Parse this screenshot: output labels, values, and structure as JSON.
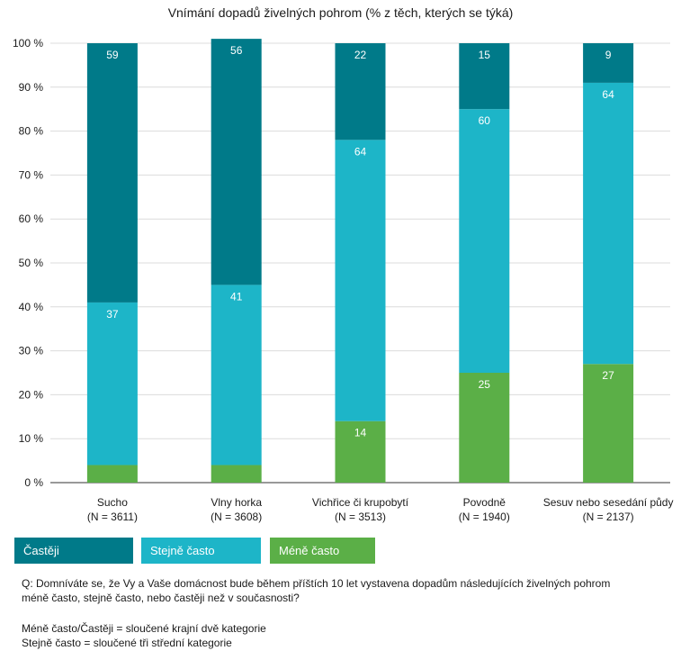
{
  "colors": {
    "more": "#007a89",
    "same": "#1db5c8",
    "less": "#5baf47",
    "grid": "#dcdcdc",
    "axis": "#333333"
  },
  "chart_data": {
    "type": "bar",
    "stacked": true,
    "title": "Vnímání dopadů živelných pohrom (% z těch, kterých se týká)",
    "categories": [
      [
        "Sucho",
        "(N = 3611)"
      ],
      [
        "Vlny horka",
        "(N = 3608)"
      ],
      [
        "Vichřice či krupobytí",
        "(N = 3513)"
      ],
      [
        "Povodně",
        "(N = 1940)"
      ],
      [
        "Sesuv nebo  sesedání půdy",
        "(N = 2137)"
      ]
    ],
    "series": [
      {
        "name": "Méně často",
        "key": "less",
        "values": [
          4,
          4,
          14,
          25,
          27
        ],
        "labels": [
          "",
          "",
          "14",
          "25",
          "27"
        ]
      },
      {
        "name": "Stejně často",
        "key": "same",
        "values": [
          37,
          41,
          64,
          60,
          64
        ],
        "labels": [
          "37",
          "41",
          "64",
          "60",
          "64"
        ]
      },
      {
        "name": "Častěji",
        "key": "more",
        "values": [
          59,
          56,
          22,
          15,
          9
        ],
        "labels": [
          "59",
          "56",
          "22",
          "15",
          "9"
        ]
      }
    ],
    "ylim": [
      0,
      100
    ],
    "yticks": [
      "0 %",
      "10 %",
      "20 %",
      "30 %",
      "40 %",
      "50 %",
      "60 %",
      "70 %",
      "80 %",
      "90 %",
      "100 %"
    ],
    "grid": true
  },
  "legend": {
    "more": "Častěji",
    "same": "Stejně často",
    "less": "Méně často"
  },
  "notes": {
    "question_line1": "Q: Domníváte se, že Vy a Vaše domácnost bude během příštích  10 let vystavena dopadům následujících živelných pohrom",
    "question_line2": "méně často, stejně často, nebo častěji než v současnosti?",
    "def_line1": "Méně často/Častěji = sloučené krajní dvě kategorie",
    "def_line2": "Stejně často = sloučené tři střední kategorie"
  }
}
